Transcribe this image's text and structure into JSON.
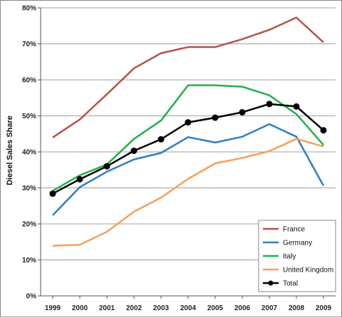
{
  "chart_data": {
    "type": "line",
    "title": "",
    "xlabel": "",
    "ylabel": "Diesel Sales Share",
    "categories": [
      "1999",
      "2000",
      "2001",
      "2002",
      "2003",
      "2004",
      "2005",
      "2006",
      "2007",
      "2008",
      "2009"
    ],
    "y_ticks": [
      "0%",
      "10%",
      "20%",
      "30%",
      "40%",
      "50%",
      "60%",
      "70%",
      "80%"
    ],
    "ylim": [
      0,
      80
    ],
    "grid": "horizontal",
    "legend_position": "bottom-right",
    "series": [
      {
        "name": "France",
        "color": "#b5524a",
        "marker": "none",
        "values": [
          44.0,
          49.0,
          56.0,
          63.2,
          67.4,
          69.1,
          69.1,
          71.3,
          73.9,
          77.3,
          70.4
        ]
      },
      {
        "name": "Germany",
        "color": "#2e7fc2",
        "marker": "none",
        "values": [
          22.4,
          30.2,
          34.5,
          37.9,
          39.7,
          44.1,
          42.6,
          44.2,
          47.7,
          44.2,
          30.6
        ]
      },
      {
        "name": "Italy",
        "color": "#22b04b",
        "marker": "none",
        "values": [
          29.2,
          33.5,
          36.5,
          43.6,
          48.7,
          58.5,
          58.5,
          58.1,
          55.7,
          50.5,
          41.9
        ]
      },
      {
        "name": "United Kingdom",
        "color": "#f5a05a",
        "marker": "none",
        "values": [
          13.9,
          14.2,
          17.8,
          23.4,
          27.3,
          32.5,
          36.8,
          38.3,
          40.2,
          43.6,
          41.5
        ]
      },
      {
        "name": "Total",
        "color": "#000000",
        "marker": "circle",
        "values": [
          28.4,
          32.4,
          36.0,
          40.3,
          43.5,
          48.2,
          49.5,
          51.0,
          53.3,
          52.6,
          46.0
        ]
      }
    ]
  }
}
